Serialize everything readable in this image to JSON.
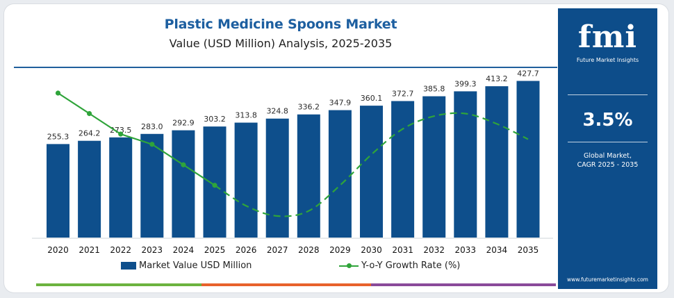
{
  "header": {
    "title": "Plastic Medicine Spoons Market",
    "subtitle": "Value (USD Million) Analysis, 2025-2035"
  },
  "legend": {
    "bars_label": "Market Value USD Million",
    "line_label": "Y-o-Y Growth Rate (%)"
  },
  "side_panel": {
    "logo_text": "fmi",
    "logo_subtitle": "Future Market Insights",
    "cagr_value": "3.5%",
    "cagr_label_line1": "Global Market,",
    "cagr_label_line2": "CAGR 2025 - 2035",
    "website": "www.futuremarketinsights.com"
  },
  "colors": {
    "bar": "#0e4f8c",
    "line": "#2fa43a",
    "title": "#1d5fa0",
    "panel": "#0d4d8a",
    "stripe": [
      "#6cb33f",
      "#e8622b",
      "#8a4b9a"
    ]
  },
  "chart_data": {
    "type": "bar",
    "categories": [
      "2020",
      "2021",
      "2022",
      "2023",
      "2024",
      "2025",
      "2026",
      "2027",
      "2028",
      "2029",
      "2030",
      "2031",
      "2032",
      "2033",
      "2034",
      "2035"
    ],
    "series": [
      {
        "name": "Market Value USD Million",
        "type": "bar",
        "values": [
          255.3,
          264.2,
          273.5,
          283.0,
          292.9,
          303.2,
          313.8,
          324.8,
          336.2,
          347.9,
          360.1,
          372.7,
          385.8,
          399.3,
          413.2,
          427.7
        ],
        "labels": [
          "255.3",
          "264.2",
          "273.5",
          "283.0",
          "292.9",
          "303.2",
          "313.8",
          "324.8",
          "336.2",
          "347.9",
          "360.1",
          "372.7",
          "385.8",
          "399.3",
          "413.2",
          "427.7"
        ]
      },
      {
        "name": "Y-o-Y Growth Rate (%)",
        "type": "line",
        "values": [
          4.0,
          3.6,
          3.2,
          3.0,
          2.6,
          2.2,
          1.8,
          1.6,
          1.7,
          2.2,
          2.8,
          3.3,
          3.55,
          3.6,
          3.4,
          3.1
        ],
        "solid_until_index": 5,
        "dashed_from_index": 5
      }
    ],
    "xlabel": "",
    "ylabel": "",
    "ylim": [
      0,
      440
    ],
    "grid": false,
    "legend_position": "bottom"
  }
}
